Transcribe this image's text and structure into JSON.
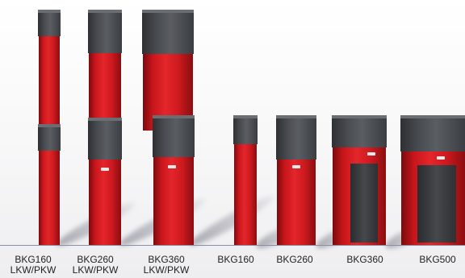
{
  "photo": {
    "description_colors": {
      "body_red": "#d81e23",
      "cap_grey": "#4a4d52",
      "baseline": "#8a8fa8"
    }
  },
  "labels": [
    {
      "line1": "BKG160",
      "line2": "LKW/PKW"
    },
    {
      "line1": "BKG260",
      "line2": "LKW/PKW"
    },
    {
      "line1": "BKG360",
      "line2": "LKW/PKW"
    },
    {
      "line1": "BKG160",
      "line2": ""
    },
    {
      "line1": "BKG260",
      "line2": ""
    },
    {
      "line1": "BKG360",
      "line2": ""
    },
    {
      "line1": "BKG500",
      "line2": ""
    }
  ]
}
